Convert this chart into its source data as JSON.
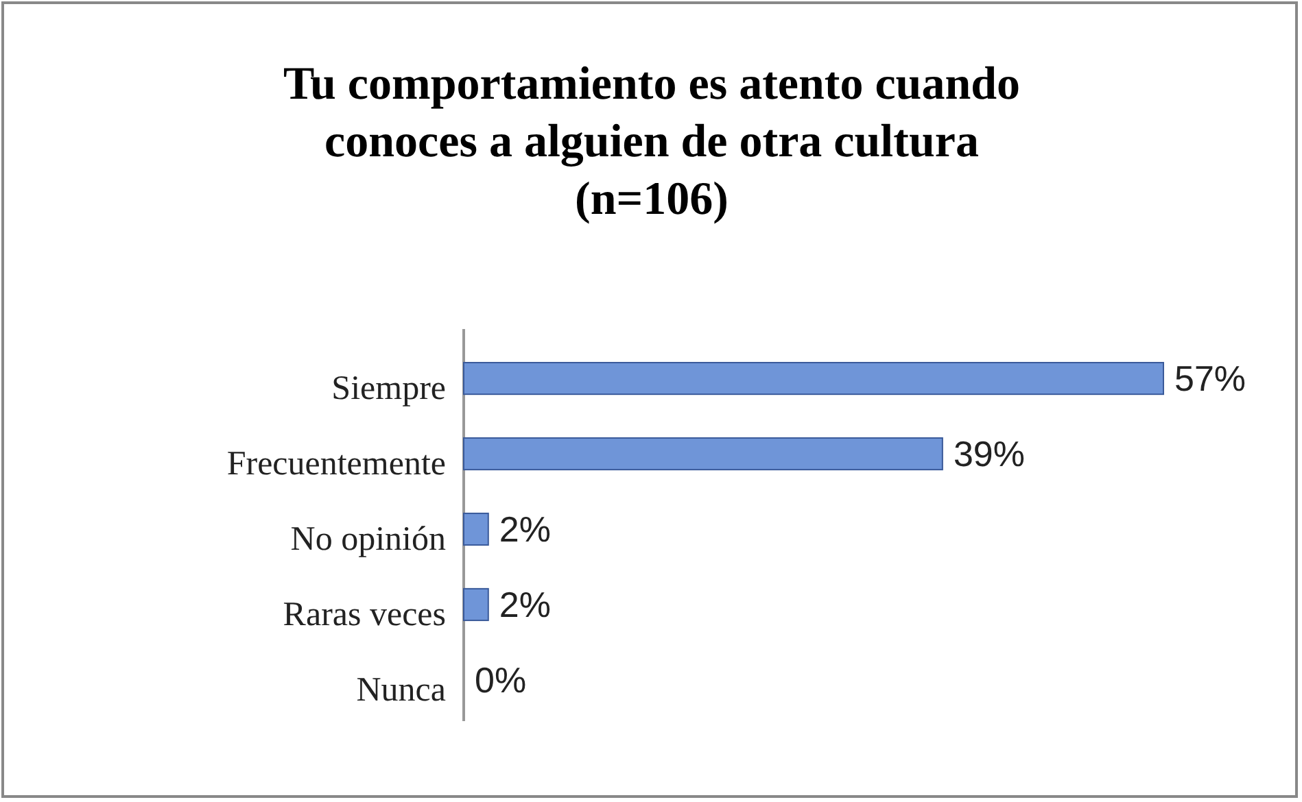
{
  "chart_data": {
    "type": "bar",
    "orientation": "horizontal",
    "title": "Tu comportamiento es atento cuando conoces a alguien de otra cultura",
    "subtitle": "(n=106)",
    "categories": [
      "Siempre",
      "Frecuentemente",
      "No opinión",
      "Raras veces",
      "Nunca"
    ],
    "values": [
      57,
      39,
      2,
      2,
      0
    ],
    "color": "#6f95d8",
    "data_labels": true,
    "value_labels": [
      "57%",
      "39%",
      "2%",
      "2%",
      "0%"
    ]
  }
}
